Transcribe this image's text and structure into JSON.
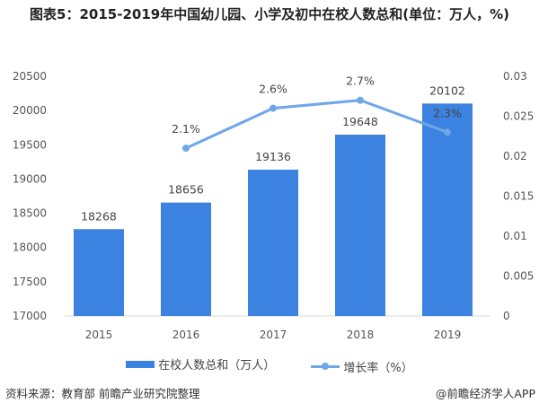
{
  "title": "图表5：2015-2019年中国幼儿园、小学及初中在校人数总和(单位：万人，%)",
  "source": "资料来源：教育部 前瞻产业研究院整理",
  "brand": "@前瞻经济学人APP",
  "colors": {
    "bar": "#3c82e0",
    "line": "#6fa6e8"
  },
  "chart_data": {
    "type": "bar+line",
    "categories": [
      "2015",
      "2016",
      "2017",
      "2018",
      "2019"
    ],
    "series": [
      {
        "name": "在校人数总和（万人）",
        "type": "bar",
        "axis": "left",
        "values": [
          18268,
          18656,
          19136,
          19648,
          20102
        ],
        "labels": [
          "18268",
          "18656",
          "19136",
          "19648",
          "20102"
        ]
      },
      {
        "name": "增长率（%）",
        "type": "line",
        "axis": "right",
        "values": [
          null,
          0.021,
          0.026,
          0.027,
          0.023
        ],
        "labels": [
          null,
          "2.1%",
          "2.6%",
          "2.7%",
          "2.3%"
        ]
      }
    ],
    "left_axis": {
      "ylim": [
        17000,
        20500
      ],
      "ticks": [
        "17000",
        "17500",
        "18000",
        "18500",
        "19000",
        "19500",
        "20000",
        "20500"
      ]
    },
    "right_axis": {
      "ylim": [
        0,
        0.03
      ],
      "ticks": [
        "0",
        "0.005",
        "0.01",
        "0.015",
        "0.02",
        "0.025",
        "0.03"
      ]
    },
    "grid": false,
    "legend": "bottom"
  }
}
